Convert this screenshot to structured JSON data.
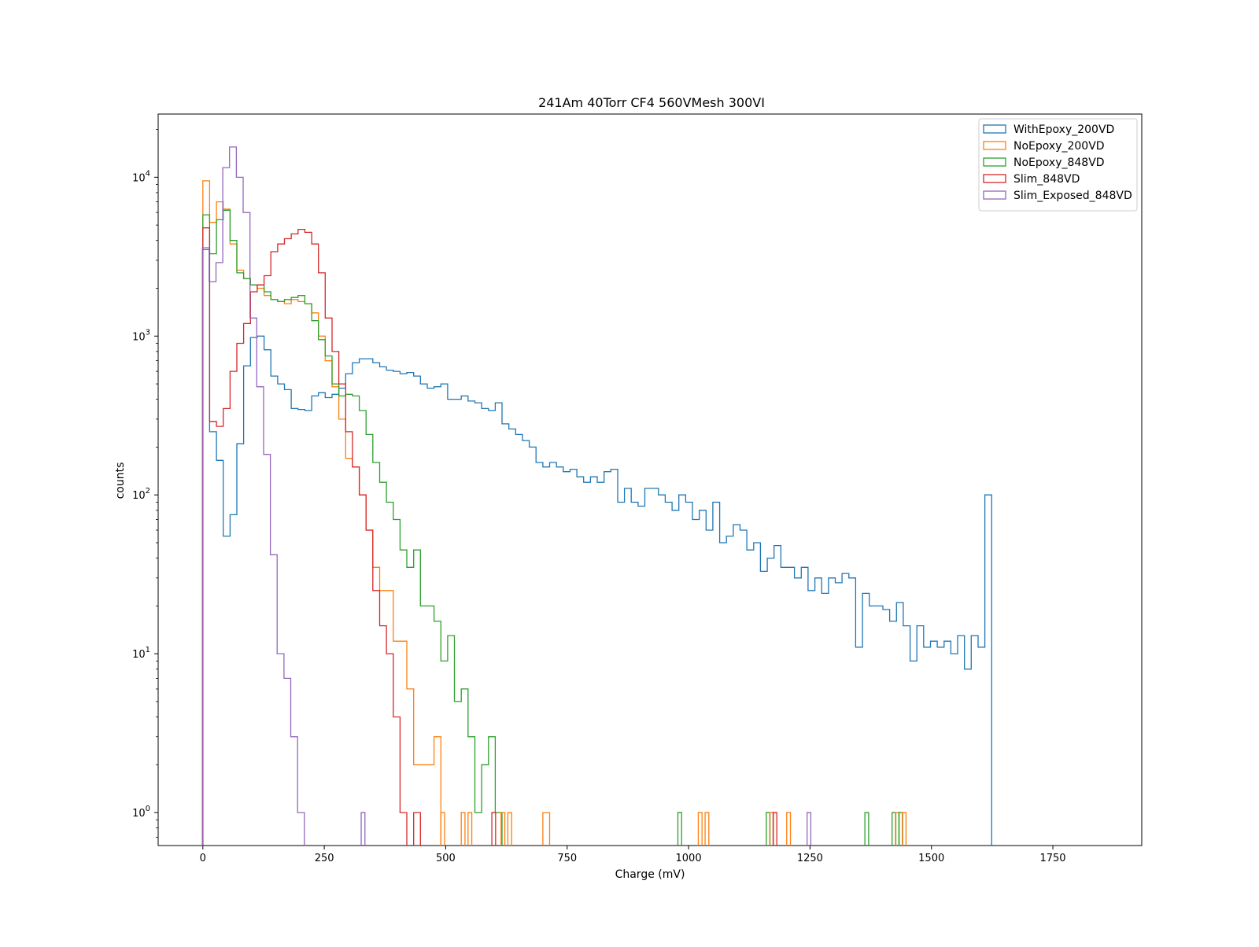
{
  "chart_data": {
    "type": "step-histogram",
    "title": "241Am 40Torr CF4 560VMesh 300VI",
    "xlabel": "Charge (mV)",
    "ylabel": "counts",
    "xlim": [
      -92,
      1933
    ],
    "ylim": [
      0.62,
      25000
    ],
    "yscale": "log",
    "grid": false,
    "legend_position": "top-right",
    "xticks": [
      0,
      250,
      500,
      750,
      1000,
      1250,
      1500,
      1750
    ],
    "xtick_labels": [
      "0",
      "250",
      "500",
      "750",
      "1000",
      "1250",
      "1500",
      "1750"
    ],
    "yticks": [
      1,
      10,
      100,
      1000,
      10000
    ],
    "ytick_labels": [
      "10^0",
      "10^1",
      "10^2",
      "10^3",
      "10^4"
    ],
    "bin_width": 14,
    "series": [
      {
        "name": "WithEpoxy_200VD",
        "color": "#1f77b4",
        "x_start": 0,
        "counts": [
          3500,
          250,
          165,
          55,
          75,
          210,
          650,
          980,
          1000,
          820,
          560,
          500,
          460,
          350,
          345,
          340,
          420,
          440,
          410,
          430,
          470,
          580,
          680,
          720,
          720,
          680,
          640,
          610,
          600,
          580,
          590,
          560,
          500,
          470,
          480,
          500,
          400,
          400,
          420,
          390,
          380,
          350,
          340,
          380,
          280,
          260,
          240,
          220,
          200,
          160,
          150,
          160,
          150,
          140,
          145,
          130,
          120,
          130,
          120,
          140,
          145,
          90,
          110,
          90,
          85,
          110,
          110,
          100,
          90,
          80,
          100,
          90,
          70,
          80,
          60,
          90,
          50,
          55,
          65,
          60,
          45,
          50,
          33,
          40,
          48,
          35,
          35,
          30,
          35,
          25,
          30,
          24,
          30,
          28,
          32,
          30,
          11,
          24,
          20,
          20,
          19,
          16,
          21,
          15,
          9,
          15,
          11,
          12,
          11,
          12,
          10,
          13,
          8,
          13,
          11,
          100
        ]
      },
      {
        "name": "NoEpoxy_200VD",
        "color": "#ff7f0e",
        "x_start": 0,
        "counts": [
          9500,
          5200,
          7000,
          6300,
          3800,
          2600,
          2300,
          2100,
          2000,
          1800,
          1700,
          1650,
          1600,
          1700,
          1650,
          1600,
          1400,
          1000,
          700,
          480,
          300,
          170,
          150,
          100,
          60,
          35,
          25,
          25,
          12,
          12,
          6,
          2,
          2,
          2,
          3,
          0,
          0,
          0,
          0,
          0,
          0,
          0,
          0,
          0,
          0,
          0,
          0,
          0,
          0,
          0,
          1
        ]
      },
      {
        "name": "NoEpoxy_848VD",
        "color": "#2ca02c",
        "x_start": 0,
        "counts": [
          5800,
          3300,
          5400,
          6200,
          4000,
          2500,
          2300,
          2100,
          2100,
          1900,
          1700,
          1650,
          1700,
          1750,
          1800,
          1600,
          1250,
          950,
          750,
          500,
          420,
          430,
          420,
          340,
          240,
          160,
          120,
          90,
          70,
          45,
          35,
          45,
          20,
          20,
          16,
          9,
          13,
          5,
          6,
          3,
          1,
          2,
          3,
          1
        ]
      },
      {
        "name": "Slim_848VD",
        "color": "#d62728",
        "x_start": 0,
        "counts": [
          4800,
          290,
          270,
          350,
          600,
          900,
          1200,
          1900,
          2100,
          2400,
          3400,
          3800,
          4100,
          4400,
          4700,
          4500,
          3800,
          2500,
          1300,
          800,
          500,
          250,
          150,
          100,
          60,
          25,
          15,
          10,
          4,
          1,
          0,
          1
        ]
      },
      {
        "name": "Slim_Exposed_848VD",
        "color": "#9467bd",
        "x_start": -1,
        "counts": [
          3600,
          2200,
          2900,
          11500,
          15500,
          10000,
          6000,
          1300,
          480,
          180,
          42,
          10,
          7,
          3,
          1
        ]
      }
    ],
    "sparse_points": {
      "x": [
        326,
        490,
        532,
        546,
        595,
        614,
        628,
        978,
        1020,
        1034,
        1160,
        1167,
        1174,
        1202,
        1244,
        1363,
        1419,
        1426,
        1433,
        1440
      ],
      "series_index": [
        4,
        1,
        1,
        1,
        3,
        1,
        1,
        2,
        1,
        1,
        2,
        1,
        3,
        1,
        4,
        2,
        2,
        1,
        2,
        1
      ],
      "count": 1
    }
  }
}
